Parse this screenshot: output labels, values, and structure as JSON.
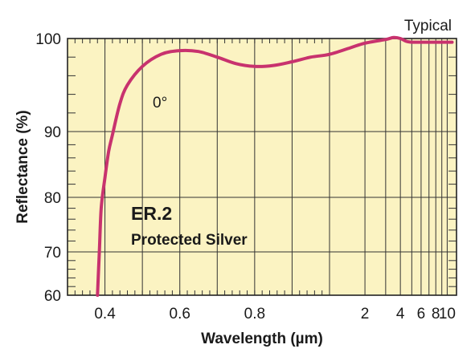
{
  "chart_data": {
    "type": "line",
    "typical_label": "Typical",
    "xlabel": "Wavelength (µm)",
    "ylabel": "Reflectance (%)",
    "x_scale": "piecewise: linear 0.3–1.0 µm, logarithmic 1–12 µm",
    "xlim": [
      0.3,
      12
    ],
    "ylim": [
      60,
      100
    ],
    "y_scale": "nonlinear (compressed below 90%)",
    "x_ticks": [
      {
        "value": 0.4,
        "label": "0.4"
      },
      {
        "value": 0.6,
        "label": "0.6"
      },
      {
        "value": 0.8,
        "label": "0.8"
      },
      {
        "value": 2,
        "label": "2"
      },
      {
        "value": 4,
        "label": "4"
      },
      {
        "value": 6,
        "label": "6"
      },
      {
        "value": 8,
        "label": "8"
      },
      {
        "value": 10,
        "label": "10"
      }
    ],
    "y_ticks": [
      {
        "value": 60,
        "label": "60"
      },
      {
        "value": 70,
        "label": "70"
      },
      {
        "value": 80,
        "label": "80"
      },
      {
        "value": 90,
        "label": "90"
      },
      {
        "value": 100,
        "label": "100"
      }
    ],
    "grid": true,
    "annotations": {
      "angle": "0°",
      "coating_code": "ER.2",
      "coating_name": "Protected Silver"
    },
    "series": [
      {
        "color": "#c8326e",
        "points": [
          [
            0.38,
            60
          ],
          [
            0.385,
            70
          ],
          [
            0.39,
            78
          ],
          [
            0.4,
            83
          ],
          [
            0.41,
            87
          ],
          [
            0.42,
            89.5
          ],
          [
            0.44,
            93
          ],
          [
            0.46,
            95
          ],
          [
            0.5,
            97
          ],
          [
            0.55,
            98.3
          ],
          [
            0.6,
            98.7
          ],
          [
            0.65,
            98.6
          ],
          [
            0.7,
            98.0
          ],
          [
            0.75,
            97.3
          ],
          [
            0.8,
            97.0
          ],
          [
            0.85,
            97.1
          ],
          [
            0.9,
            97.5
          ],
          [
            0.95,
            98.0
          ],
          [
            1.0,
            98.3
          ],
          [
            1.5,
            99.0
          ],
          [
            2.0,
            99.5
          ],
          [
            3.0,
            99.9
          ],
          [
            3.5,
            100.1
          ],
          [
            4.0,
            100.0
          ],
          [
            4.5,
            99.7
          ],
          [
            5.0,
            99.6
          ],
          [
            6.0,
            99.6
          ],
          [
            8.0,
            99.6
          ],
          [
            10.0,
            99.6
          ],
          [
            11.0,
            99.6
          ]
        ]
      }
    ]
  }
}
